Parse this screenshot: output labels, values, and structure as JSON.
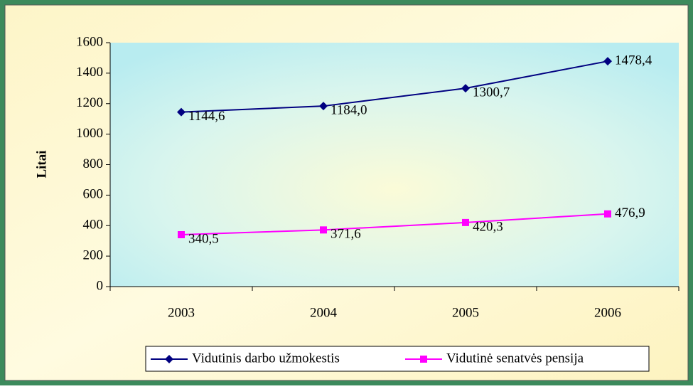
{
  "chart_data": {
    "type": "line",
    "y_label": "Litai",
    "categories": [
      "2003",
      "2004",
      "2005",
      "2006"
    ],
    "series": [
      {
        "name": "Vidutinis darbo užmokestis",
        "color": "#000080",
        "marker": "diamond",
        "values": [
          1144.6,
          1184.0,
          1300.7,
          1478.4
        ],
        "value_labels": [
          "1144,6",
          "1184,0",
          "1300,7",
          "1478,4"
        ]
      },
      {
        "name": "Vidutinė senatvės pensija",
        "color": "#ff00ff",
        "marker": "square",
        "values": [
          340.5,
          371.6,
          420.3,
          476.9
        ],
        "value_labels": [
          "340,5",
          "371,6",
          "420,3",
          "476,9"
        ]
      }
    ],
    "ylim": [
      0,
      1600
    ],
    "yticks": [
      0,
      200,
      400,
      600,
      800,
      1000,
      1200,
      1400,
      1600
    ],
    "legend": "bottom"
  }
}
